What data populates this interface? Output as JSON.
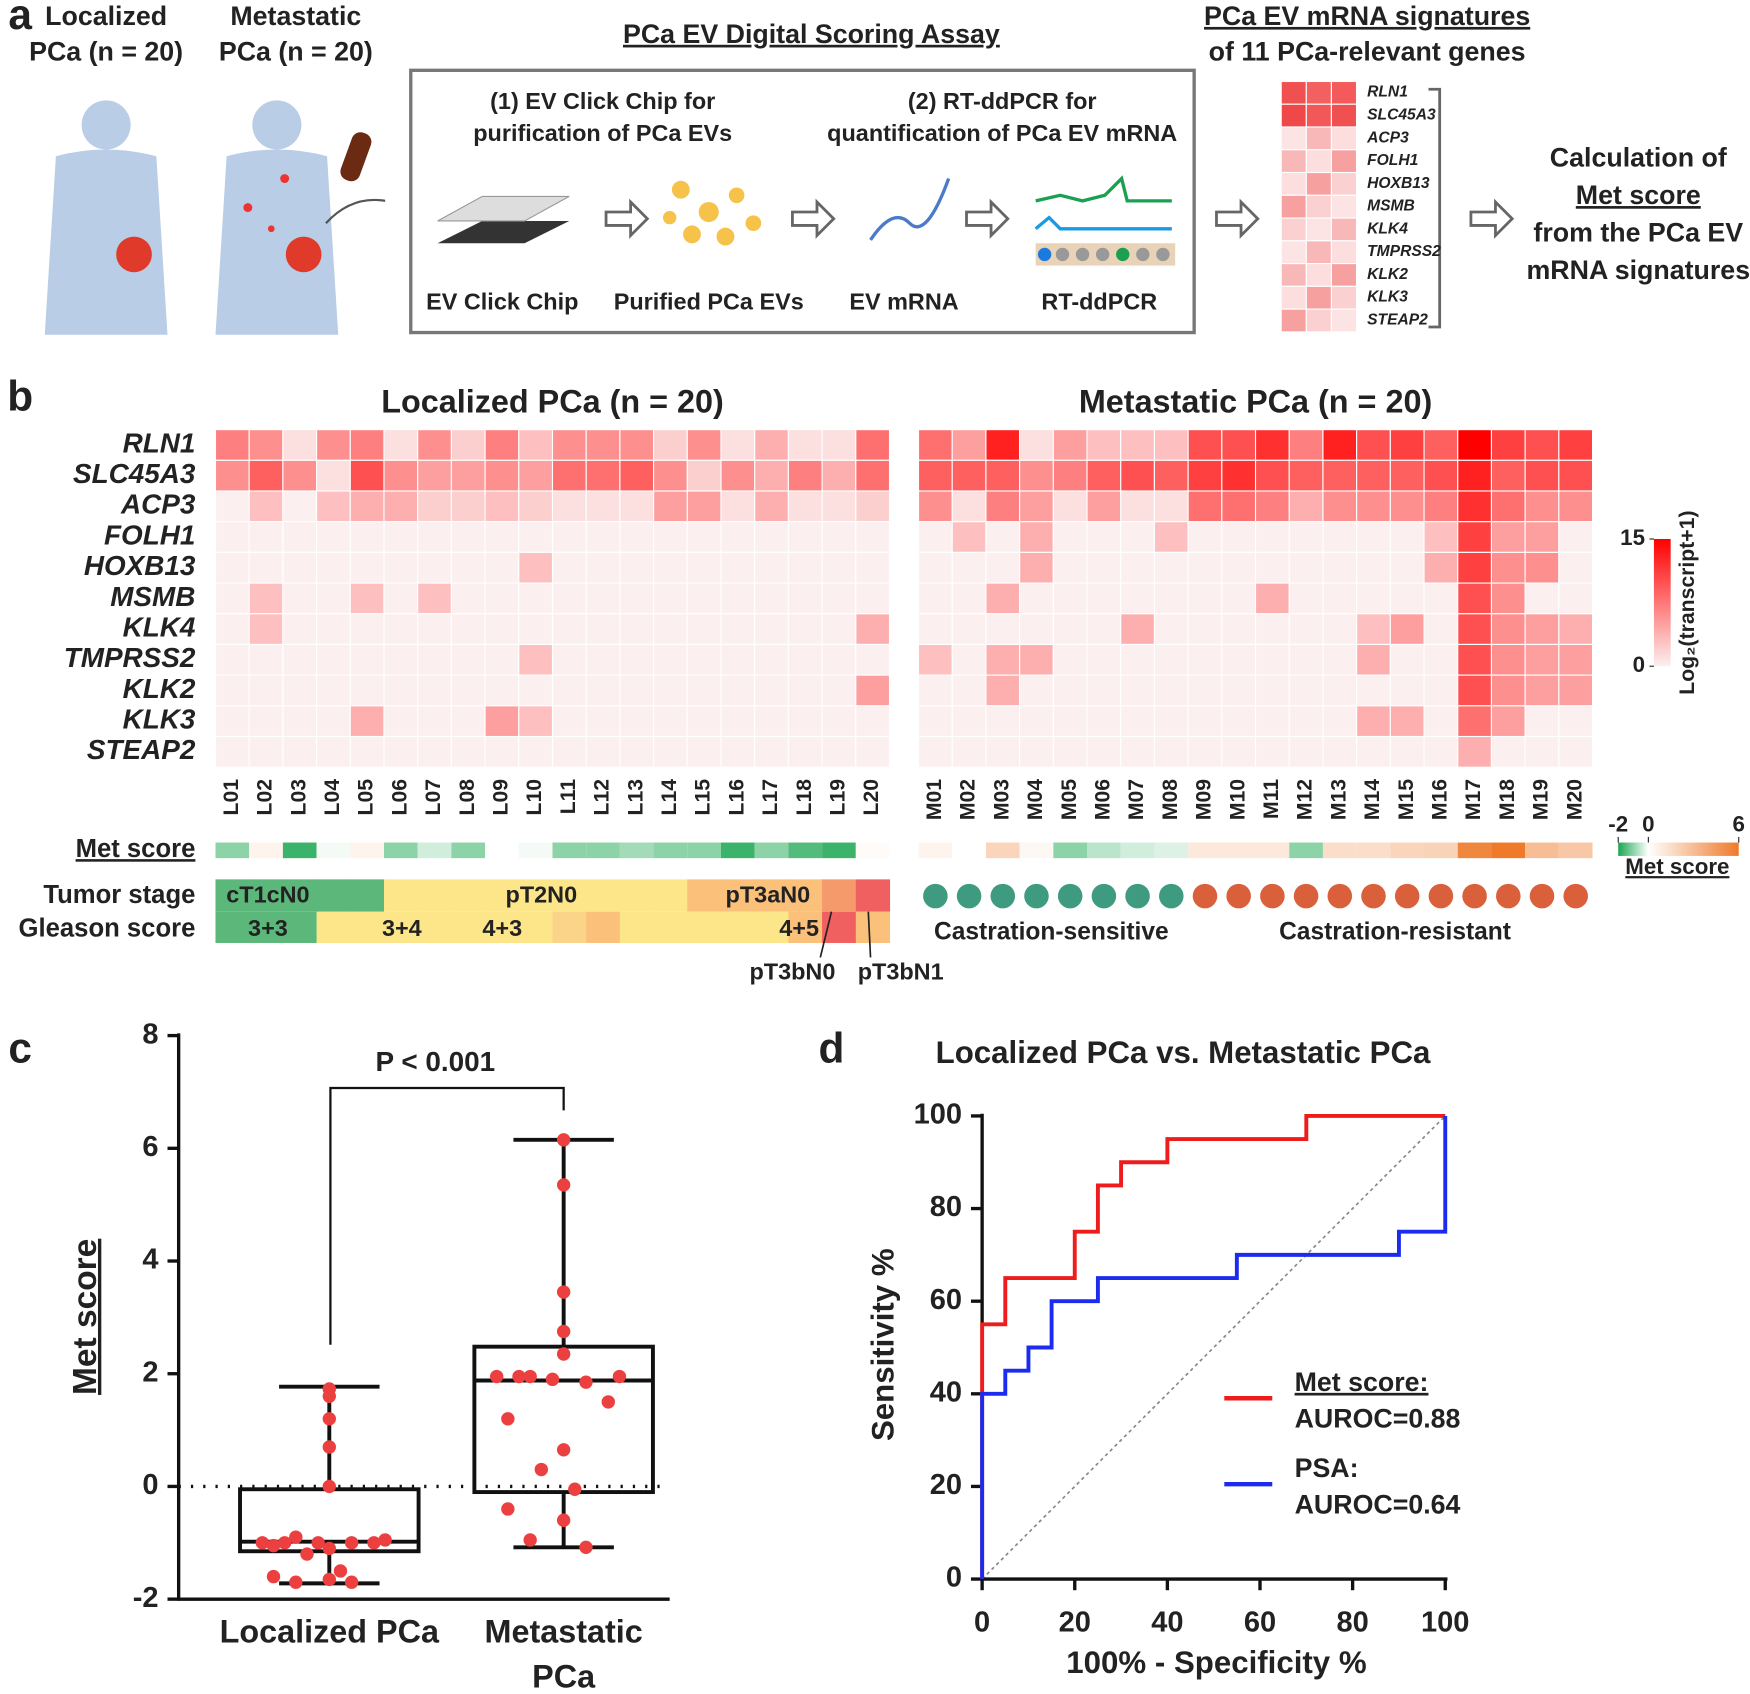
{
  "diagram": {
    "panel_labels": [
      "a",
      "b",
      "c",
      "d"
    ],
    "groups": [
      [
        "Localized",
        "PCa (n = 20)"
      ],
      [
        "Metastatic",
        "PCa (n = 20)"
      ]
    ],
    "assay_title": "PCa EV Digital Scoring Assay",
    "steps": [
      [
        "(1)   EV Click Chip for",
        "purification of PCa EVs"
      ],
      [
        "(2) RT-ddPCR for",
        "quantification of PCa EV mRNA"
      ]
    ],
    "items": [
      "EV Click Chip",
      "Purified PCa EVs",
      "EV mRNA",
      "RT-ddPCR"
    ],
    "signature_title": [
      "PCa EV mRNA signatures",
      "of 11 PCa-relevant genes"
    ],
    "genes": [
      "RLN1",
      "SLC45A3",
      "ACP3",
      "FOLH1",
      "HOXB13",
      "MSMB",
      "KLK4",
      "TMPRSS2",
      "KLK2",
      "KLK3",
      "STEAP2"
    ],
    "calc": [
      "Calculation of",
      "Met score",
      "from the PCa EV",
      "mRNA signatures"
    ]
  },
  "chart_data": [
    {
      "type": "heatmap",
      "title": "Localized PCa (n = 20)",
      "rows": [
        "RLN1",
        "SLC45A3",
        "ACP3",
        "FOLH1",
        "HOXB13",
        "MSMB",
        "KLK4",
        "TMPRSS2",
        "KLK2",
        "KLK3",
        "STEAP2"
      ],
      "categories": [
        "L01",
        "L02",
        "L03",
        "L04",
        "L05",
        "L06",
        "L07",
        "L08",
        "L09",
        "L10",
        "L11",
        "L12",
        "L13",
        "L14",
        "L15",
        "L16",
        "L17",
        "L18",
        "L19",
        "L20"
      ],
      "values": [
        [
          7,
          6,
          1,
          6,
          7,
          1,
          6,
          2,
          7,
          3,
          6,
          6,
          6,
          2,
          6,
          1,
          4,
          1,
          1,
          8
        ],
        [
          6,
          9,
          6,
          1,
          10,
          6,
          5,
          5,
          6,
          5,
          8,
          8,
          9,
          6,
          2,
          6,
          4,
          7,
          4,
          8
        ],
        [
          0,
          3,
          0,
          3,
          4,
          4,
          2,
          2,
          3,
          2,
          1,
          1,
          1,
          5,
          5,
          1,
          4,
          1,
          1,
          2
        ],
        [
          0,
          0,
          0,
          0,
          0,
          0,
          0,
          0,
          0,
          0,
          0,
          0,
          0,
          0,
          0,
          0,
          0,
          0,
          0,
          0
        ],
        [
          0,
          0,
          0,
          0,
          0,
          0,
          0,
          0,
          0,
          3,
          0,
          0,
          0,
          0,
          0,
          0,
          0,
          0,
          0,
          0
        ],
        [
          0,
          3,
          0,
          0,
          3,
          0,
          3,
          0,
          0,
          0,
          0,
          0,
          0,
          0,
          0,
          0,
          0,
          0,
          0,
          0
        ],
        [
          0,
          3,
          0,
          0,
          0,
          0,
          0,
          0,
          0,
          0,
          0,
          0,
          0,
          0,
          0,
          0,
          0,
          0,
          0,
          4
        ],
        [
          0,
          0,
          0,
          0,
          0,
          0,
          0,
          0,
          0,
          3,
          0,
          0,
          0,
          0,
          0,
          0,
          0,
          0,
          0,
          0
        ],
        [
          0,
          0,
          0,
          0,
          0,
          0,
          0,
          0,
          0,
          0,
          0,
          0,
          0,
          0,
          0,
          0,
          0,
          0,
          0,
          5
        ],
        [
          0,
          0,
          0,
          0,
          4,
          0,
          0,
          0,
          5,
          3,
          0,
          0,
          0,
          0,
          0,
          0,
          0,
          0,
          0,
          0
        ],
        [
          0,
          0,
          0,
          0,
          0,
          0,
          0,
          0,
          0,
          0,
          0,
          0,
          0,
          0,
          0,
          0,
          0,
          0,
          0,
          0
        ]
      ],
      "zlim": [
        0,
        15
      ],
      "met_score": {
        "name": "Met score",
        "values": [
          -1,
          0.5,
          -1.7,
          -0.1,
          0.5,
          -1,
          -0.4,
          -1,
          0,
          -0.1,
          -1,
          -1,
          -0.8,
          -1,
          -1,
          -1.7,
          -1,
          -1.5,
          -1.7,
          0.2
        ],
        "lim": [
          -2,
          6
        ]
      },
      "annotation_rows": [
        "Tumor stage",
        "Gleason score"
      ],
      "tumor_stage_labels": [
        "cT1cN0",
        "pT2N0",
        "pT3aN0",
        "pT3bN0",
        "pT3bN1"
      ],
      "gleason_labels": [
        "3+3",
        "3+4",
        "4+3",
        "4+5"
      ]
    },
    {
      "type": "heatmap",
      "title": "Metastatic PCa (n = 20)",
      "categories": [
        "M01",
        "M02",
        "M03",
        "M04",
        "M05",
        "M06",
        "M07",
        "M08",
        "M09",
        "M10",
        "M11",
        "M12",
        "M13",
        "M14",
        "M15",
        "M16",
        "M17",
        "M18",
        "M19",
        "M20"
      ],
      "values": [
        [
          8,
          5,
          13,
          1,
          5,
          3,
          3,
          3,
          10,
          10,
          12,
          7,
          13,
          10,
          11,
          9,
          15,
          11,
          10,
          11
        ],
        [
          9,
          9,
          9,
          6,
          7,
          9,
          10,
          9,
          11,
          12,
          10,
          9,
          9,
          9,
          9,
          10,
          13,
          9,
          10,
          10
        ],
        [
          6,
          1,
          7,
          5,
          1,
          5,
          1,
          1,
          8,
          8,
          7,
          4,
          6,
          6,
          6,
          7,
          12,
          8,
          6,
          6
        ],
        [
          0,
          3,
          0,
          4,
          0,
          0,
          0,
          3,
          0,
          0,
          0,
          0,
          0,
          0,
          0,
          3,
          11,
          5,
          5,
          0
        ],
        [
          0,
          0,
          0,
          4,
          0,
          0,
          0,
          0,
          0,
          0,
          0,
          0,
          0,
          0,
          0,
          4,
          11,
          6,
          6,
          0
        ],
        [
          0,
          0,
          4,
          0,
          0,
          0,
          0,
          0,
          0,
          0,
          4,
          0,
          0,
          0,
          0,
          0,
          10,
          6,
          0,
          0
        ],
        [
          0,
          0,
          0,
          0,
          0,
          0,
          4,
          0,
          0,
          0,
          0,
          0,
          0,
          3,
          5,
          0,
          10,
          6,
          5,
          4
        ],
        [
          3,
          0,
          4,
          4,
          0,
          0,
          0,
          0,
          0,
          0,
          0,
          0,
          0,
          4,
          0,
          0,
          10,
          6,
          5,
          5
        ],
        [
          0,
          0,
          4,
          0,
          0,
          0,
          0,
          0,
          0,
          0,
          0,
          0,
          0,
          0,
          0,
          0,
          10,
          6,
          5,
          5
        ],
        [
          0,
          0,
          0,
          0,
          0,
          0,
          0,
          0,
          0,
          0,
          0,
          0,
          0,
          4,
          4,
          0,
          8,
          5,
          0,
          0
        ],
        [
          0,
          0,
          0,
          0,
          0,
          0,
          0,
          0,
          0,
          0,
          0,
          0,
          0,
          0,
          0,
          0,
          4,
          0,
          0,
          0
        ]
      ],
      "zlim": [
        0,
        15
      ],
      "zticks": [
        0,
        15
      ],
      "zlabel": "Log₂(transcript+1)",
      "met_score": {
        "values": [
          0.5,
          0,
          1.9,
          0.3,
          -1,
          -0.6,
          -0.4,
          -0.3,
          1,
          1,
          1,
          -1,
          1.5,
          1.5,
          1.9,
          2,
          5.4,
          6,
          3,
          2.5
        ],
        "lim": [
          -2,
          6
        ],
        "ticks": [
          -2,
          0,
          6
        ],
        "label": "Met score"
      },
      "status_labels": [
        "Castration-sensitive",
        "Castration-resistant"
      ]
    },
    {
      "type": "box",
      "categories": [
        "Localized PCa",
        "Metastatic PCa"
      ],
      "ylabel": "Met score",
      "points": [
        [
          1.73,
          1.6,
          1.2,
          0.7,
          0,
          -0.9,
          -0.95,
          -1,
          -1,
          -1,
          -1,
          -1,
          -1.05,
          -1.1,
          -1.2,
          -1.5,
          -1.6,
          -1.65,
          -1.7,
          -1.7
        ],
        [
          6.15,
          5.35,
          3.45,
          2.75,
          2.35,
          1.95,
          1.95,
          1.95,
          1.95,
          1.9,
          1.85,
          1.5,
          1.2,
          0.65,
          0.3,
          -0.05,
          -0.4,
          -0.6,
          -0.95,
          -1.08
        ]
      ],
      "boxes": [
        {
          "min": -1.72,
          "q1": -1.15,
          "median": -0.98,
          "q3": -0.05,
          "max": 1.77
        },
        {
          "min": -1.08,
          "q1": -0.1,
          "median": 1.88,
          "q3": 2.48,
          "max": 6.15
        }
      ],
      "point_color": "#ec4040",
      "ylim": [
        -2,
        8
      ],
      "yticks": [
        -2,
        0,
        2,
        4,
        6,
        8
      ],
      "zero_line": true,
      "annotation": "P < 0.001"
    },
    {
      "type": "line",
      "title": "Localized PCa vs. Metastatic PCa",
      "xlabel": "100% - Specificity %",
      "ylabel": "Sensitivity %",
      "series": [
        {
          "name": "Met score:",
          "label": "AUROC=0.88",
          "color": "#ee1c1c",
          "x": [
            0,
            0,
            5,
            5,
            20,
            20,
            25,
            25,
            30,
            30,
            40,
            40,
            70,
            70,
            100
          ],
          "values": [
            0,
            55,
            55,
            65,
            65,
            75,
            75,
            85,
            85,
            90,
            90,
            95,
            95,
            100,
            100
          ]
        },
        {
          "name": "PSA:",
          "label": "AUROC=0.64",
          "color": "#1c2cee",
          "x": [
            0,
            0,
            5,
            5,
            10,
            10,
            15,
            15,
            25,
            25,
            55,
            55,
            90,
            90,
            100,
            100
          ],
          "values": [
            0,
            40,
            40,
            45,
            45,
            50,
            50,
            60,
            60,
            65,
            65,
            70,
            70,
            75,
            75,
            100
          ]
        }
      ],
      "xlim": [
        0,
        100
      ],
      "ylim": [
        0,
        100
      ],
      "xticks": [
        0,
        20,
        40,
        60,
        80,
        100
      ],
      "yticks": [
        0,
        20,
        40,
        60,
        80,
        100
      ],
      "diagonal": true
    }
  ]
}
